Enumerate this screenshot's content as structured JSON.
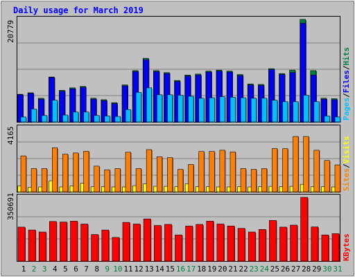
{
  "title": "Daily usage for March 2019",
  "colors": {
    "hits": "#008040",
    "files": "#0000ff",
    "pages": "#00c0ff",
    "visits": "#ffff00",
    "sites": "#ff8000",
    "kbytes": "#ff0000",
    "title": "#0000ff",
    "weekday": "#000000",
    "weekend": "#008040"
  },
  "legend": {
    "top": {
      "hits": "Hits",
      "files": "Files",
      "pages": "Pages",
      "sep": "/"
    },
    "mid": {
      "visits": "Visits",
      "sites": "Sites",
      "sep": "/"
    },
    "bottom": {
      "kbytes": "KBytes"
    }
  },
  "chart_data": [
    {
      "type": "bar",
      "panel": "hits-files-pages",
      "y_max_label": "20779",
      "ylim": [
        0,
        20779
      ],
      "categories": [
        "1",
        "2",
        "3",
        "4",
        "5",
        "6",
        "7",
        "8",
        "9",
        "10",
        "11",
        "12",
        "13",
        "14",
        "15",
        "16",
        "17",
        "18",
        "19",
        "20",
        "21",
        "22",
        "23",
        "24",
        "25",
        "26",
        "27",
        "28",
        "29",
        "30",
        "31"
      ],
      "weekend_days": [
        2,
        3,
        9,
        10,
        16,
        17,
        23,
        24,
        30,
        31
      ],
      "series": [
        {
          "name": "Hits",
          "values": [
            5600,
            5900,
            4800,
            9100,
            6400,
            6900,
            7200,
            4800,
            4500,
            3900,
            7500,
            10400,
            12900,
            10400,
            10000,
            8400,
            9500,
            9700,
            10300,
            10500,
            10300,
            9600,
            7700,
            7600,
            10800,
            9800,
            10500,
            20779,
            10400,
            4800,
            4700
          ]
        },
        {
          "name": "Files",
          "values": [
            5500,
            5800,
            4600,
            9000,
            6200,
            6700,
            7000,
            4600,
            4300,
            3700,
            7300,
            10200,
            12600,
            10200,
            9800,
            8200,
            9300,
            9500,
            10100,
            10300,
            10100,
            9400,
            7500,
            7400,
            10600,
            9600,
            10000,
            20000,
            9500,
            4600,
            4500
          ]
        },
        {
          "name": "Pages",
          "values": [
            1000,
            2600,
            1300,
            4400,
            1400,
            2000,
            2000,
            1300,
            1200,
            1100,
            2500,
            6000,
            6900,
            5500,
            5500,
            5400,
            5200,
            4800,
            4900,
            5100,
            5000,
            4900,
            4800,
            4800,
            4400,
            4100,
            4100,
            5400,
            4100,
            1200,
            1000
          ]
        }
      ]
    },
    {
      "type": "bar",
      "panel": "visits-sites",
      "y_max_label": "4165",
      "ylim": [
        0,
        4165
      ],
      "series": [
        {
          "name": "Visits",
          "values": [
            380,
            300,
            320,
            720,
            320,
            380,
            560,
            330,
            330,
            320,
            320,
            400,
            520,
            360,
            360,
            330,
            520,
            330,
            330,
            320,
            320,
            330,
            320,
            330,
            360,
            330,
            360,
            490,
            330,
            330,
            320
          ]
        },
        {
          "name": "Sites",
          "values": [
            2350,
            1520,
            1520,
            2880,
            2460,
            2540,
            2650,
            1680,
            1440,
            1520,
            2590,
            1520,
            2760,
            2290,
            2240,
            1470,
            1790,
            2640,
            2640,
            2720,
            2610,
            1520,
            1470,
            1520,
            2830,
            2820,
            3620,
            3620,
            2720,
            2050,
            1760
          ]
        }
      ]
    },
    {
      "type": "bar",
      "panel": "kbytes",
      "y_max_label": "350691",
      "ylim": [
        0,
        350691
      ],
      "series": [
        {
          "name": "KBytes",
          "values": [
            187000,
            171000,
            160000,
            218000,
            215000,
            220000,
            204000,
            146000,
            171000,
            130000,
            213000,
            204000,
            232000,
            196000,
            202000,
            144000,
            193000,
            202000,
            220000,
            204000,
            193000,
            180000,
            160000,
            174000,
            224000,
            187000,
            198000,
            350691,
            188000,
            144000,
            151000
          ]
        }
      ]
    }
  ]
}
